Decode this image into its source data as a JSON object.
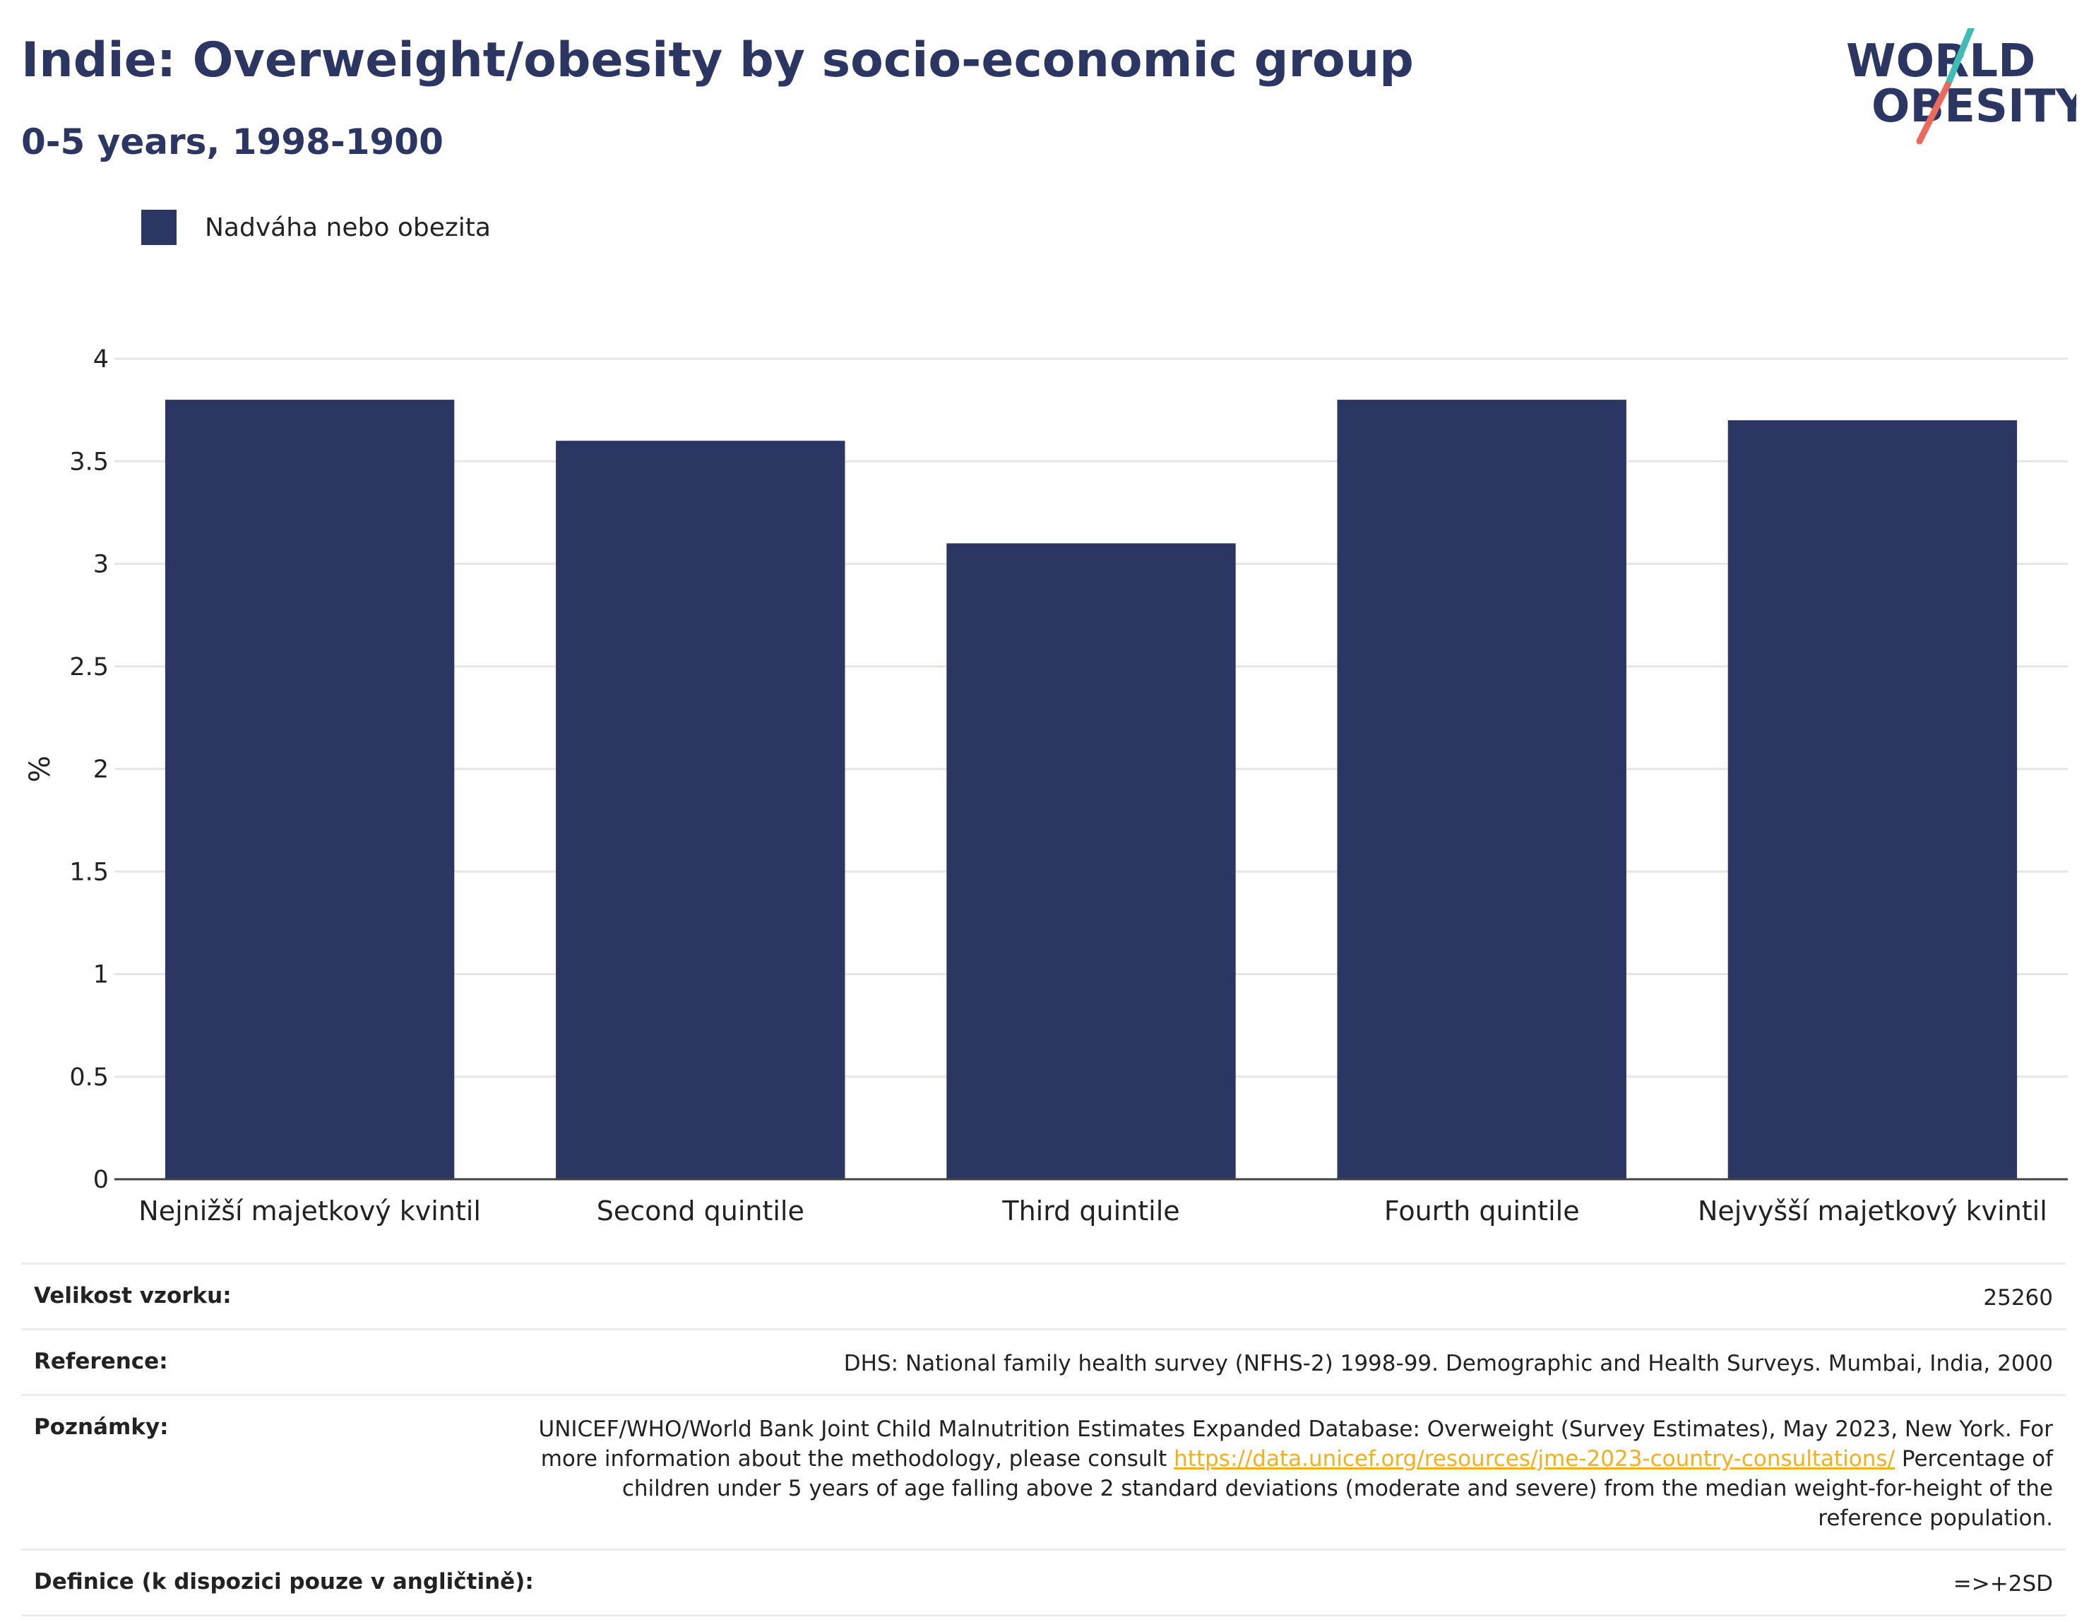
{
  "header": {
    "title": "Indie: Overweight/obesity by socio-economic group",
    "subtitle": "0-5 years, 1998-1900"
  },
  "logo": {
    "line1": "WORLD",
    "line2": "OBESITY"
  },
  "colors": {
    "bar": "#2b3663",
    "title": "#2b3663",
    "link": "#f2b01e",
    "logo_teal": "#3dbdb6",
    "logo_coral": "#ec6a5c"
  },
  "chart_data": {
    "type": "bar",
    "categories": [
      "Nejnižší majetkový kvintil",
      "Second quintile",
      "Third quintile",
      "Fourth quintile",
      "Nejvyšší majetkový kvintil"
    ],
    "series": [
      {
        "name": "Nadváha nebo obezita",
        "values": [
          3.8,
          3.6,
          3.1,
          3.8,
          3.7
        ]
      }
    ],
    "ylabel": "%",
    "ylim": [
      0,
      4
    ],
    "yticks": [
      "0",
      "0.5",
      "1",
      "1.5",
      "2",
      "2.5",
      "3",
      "3.5",
      "4"
    ],
    "grid": true,
    "legend_position": "top-left"
  },
  "meta": {
    "sample_label": "Velikost vzorku:",
    "sample_value": "25260",
    "reference_label": "Reference:",
    "reference_value": "DHS: National family health survey (NFHS-2) 1998-99. Demographic and Health Surveys. Mumbai, India, 2000",
    "notes_label": "Poznámky:",
    "notes_text1": "UNICEF/WHO/World Bank Joint Child Malnutrition Estimates Expanded Database: Overweight (Survey Estimates), May 2023, New York. For more information about the methodology, please consult ",
    "notes_link": "https://data.unicef.org/resources/jme-2023-country-consultations/",
    "notes_text2": " Percentage of children under 5 years of age falling above 2 standard deviations (moderate and severe) from the median weight-for-height of the reference population.",
    "definition_label": "Definice (k dispozici pouze v angličtině):",
    "definition_value": "=>+2SD"
  }
}
